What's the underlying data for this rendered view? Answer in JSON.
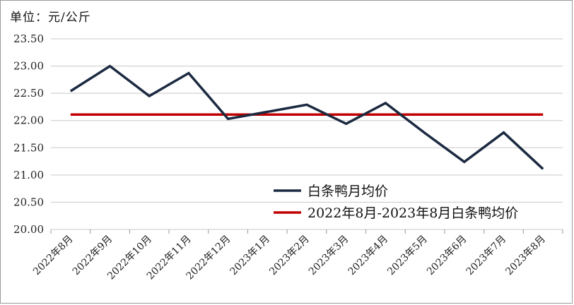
{
  "chart_data": {
    "type": "line",
    "unit_label": "单位：元/公斤",
    "categories": [
      "2022年8月",
      "2022年9月",
      "2022年10月",
      "2022年11月",
      "2022年12月",
      "2023年1月",
      "2023年2月",
      "2023年3月",
      "2023年4月",
      "2023年5月",
      "2023年6月",
      "2023年7月",
      "2023年8月"
    ],
    "series": [
      {
        "name": "白条鸭月均价",
        "color": "#1b2a41",
        "values": [
          22.54,
          23.0,
          22.45,
          22.87,
          22.03,
          22.16,
          22.29,
          21.94,
          22.32,
          21.77,
          21.24,
          21.78,
          21.11
        ]
      },
      {
        "name": "2022年8月-2023年8月白条鸭均价",
        "color": "#c00000",
        "values": [
          22.11,
          22.11,
          22.11,
          22.11,
          22.11,
          22.11,
          22.11,
          22.11,
          22.11,
          22.11,
          22.11,
          22.11,
          22.11
        ]
      }
    ],
    "ylim": [
      20.0,
      23.5
    ],
    "yticks": [
      "20.00",
      "20.50",
      "21.00",
      "21.50",
      "22.00",
      "22.50",
      "23.00",
      "23.50"
    ],
    "grid": true,
    "legend_position": "bottom-right"
  }
}
